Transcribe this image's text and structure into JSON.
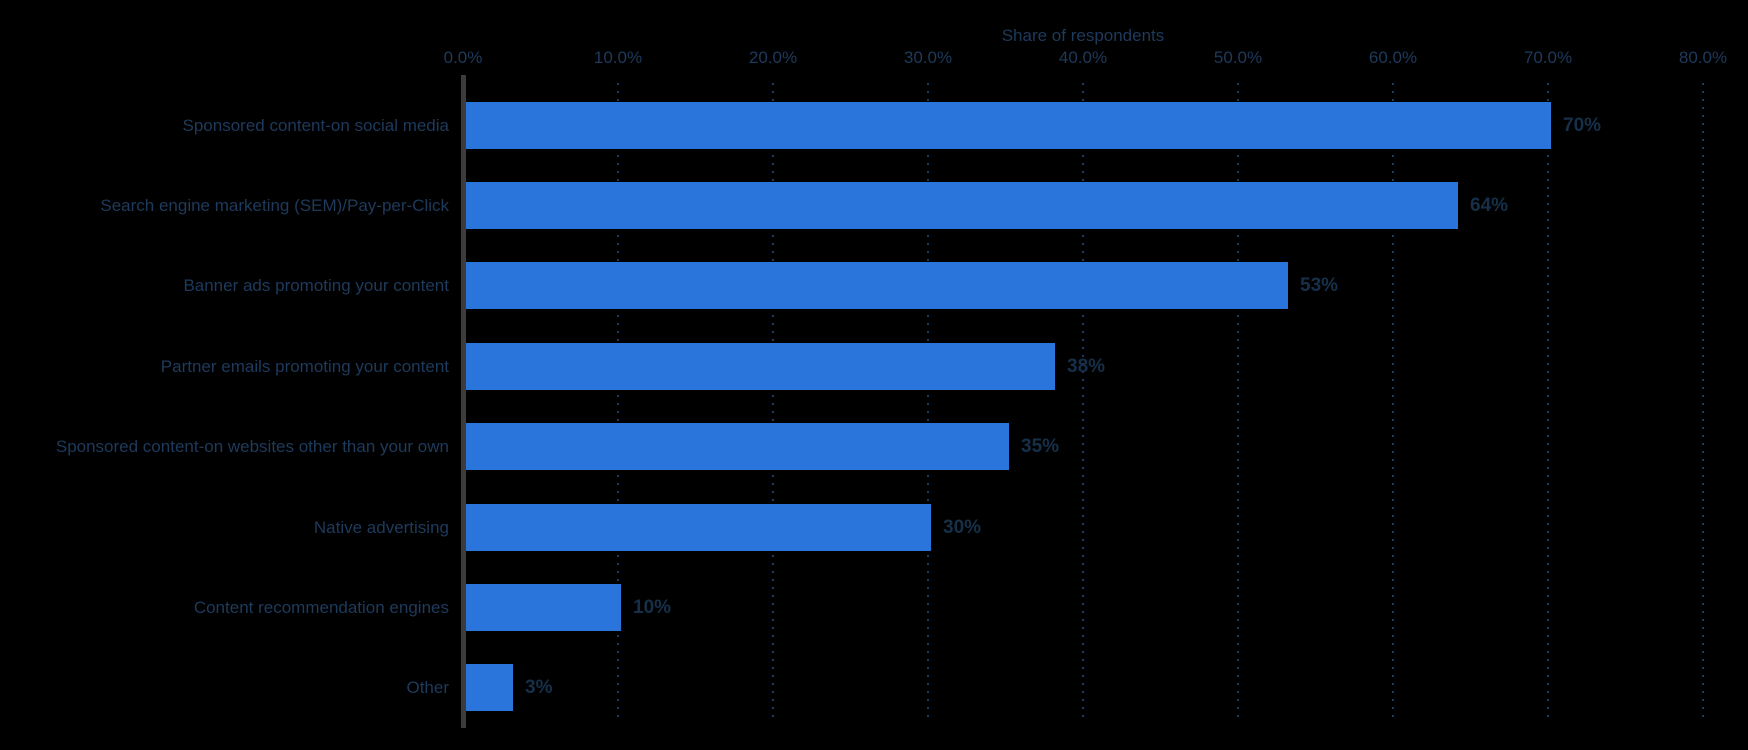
{
  "chart_data": {
    "type": "bar",
    "orientation": "horizontal",
    "xlabel": "Share of respondents",
    "categories": [
      "Sponsored content-on social media",
      "Search engine marketing (SEM)/Pay-per-Click",
      "Banner ads promoting your content",
      "Partner emails promoting your content",
      "Sponsored content-on websites other than your own",
      "Native advertising",
      "Content recommendation engines",
      "Other"
    ],
    "values": [
      70,
      64,
      53,
      38,
      35,
      30,
      10,
      3
    ],
    "value_labels": [
      "70%",
      "64%",
      "53%",
      "38%",
      "35%",
      "30%",
      "10%",
      "3%"
    ],
    "x_axis": {
      "min": 0,
      "max": 80,
      "tick_step": 10,
      "tick_labels": [
        "0.0%",
        "10.0%",
        "20.0%",
        "30.0%",
        "40.0%",
        "50.0%",
        "60.0%",
        "70.0%",
        "80.0%"
      ],
      "position": "top",
      "gridlines": "dotted"
    },
    "legend": "none",
    "colors": {
      "bar": "#2a75dc",
      "text": "#1e3a5c",
      "value_text": "#16304a",
      "gridline": "#1e3a5c",
      "axis_line": "#3c3c3c",
      "background": "#000000"
    }
  }
}
